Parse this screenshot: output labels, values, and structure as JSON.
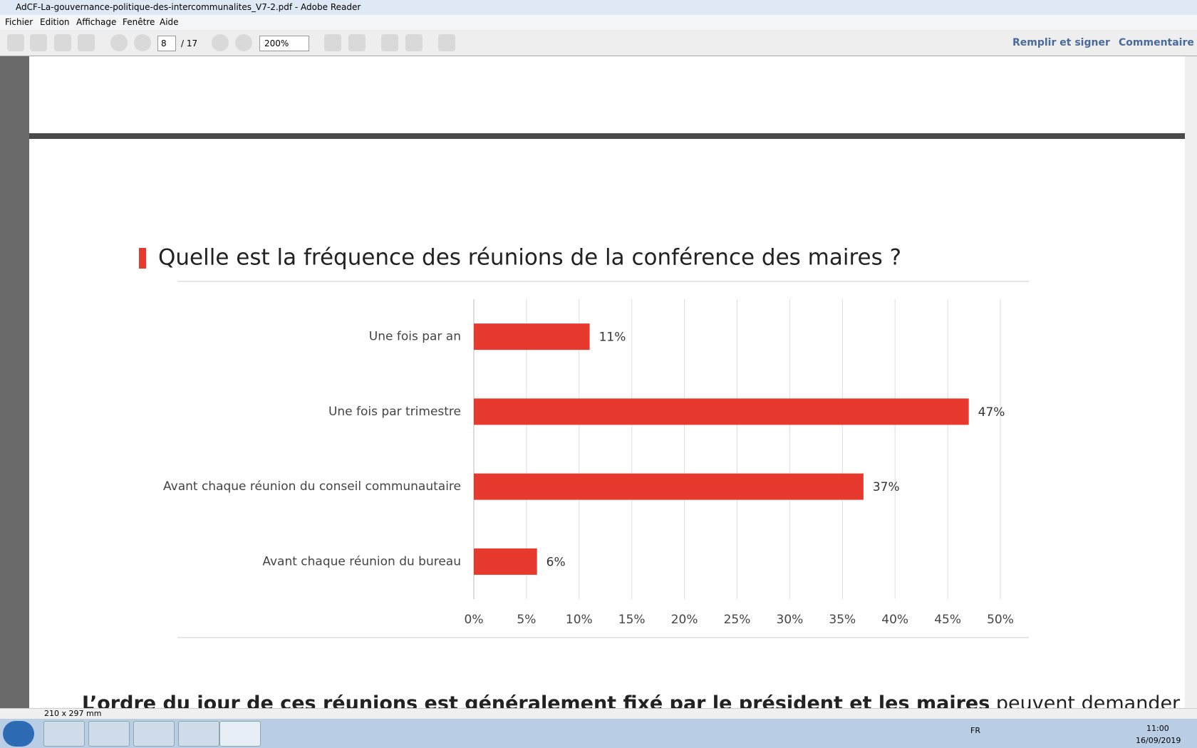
{
  "window": {
    "title": "AdCF-La-gouvernance-politique-des-intercommunalites_V7-2.pdf - Adobe Reader"
  },
  "menu": [
    "Fichier",
    "Edition",
    "Affichage",
    "Fenêtre",
    "Aide"
  ],
  "toolbar": {
    "page": "8",
    "page_total": "/ 17",
    "zoom": "200%",
    "fill_sign": "Remplir et signer",
    "comment": "Commentaire"
  },
  "chart_data": {
    "type": "barh",
    "title": "Quelle est la fréquence des réunions de la conférence des maires ?",
    "categories": [
      "Une fois par an",
      "Une fois par trimestre",
      "Avant chaque réunion du conseil communautaire",
      "Avant chaque réunion du bureau"
    ],
    "values": [
      11,
      47,
      37,
      6
    ],
    "value_labels": [
      "11%",
      "47%",
      "37%",
      "6%"
    ],
    "color": "#e8392f",
    "xlim": [
      0,
      50
    ],
    "xticks": [
      {
        "value": 0,
        "label": "0%"
      },
      {
        "value": 5,
        "label": "5%"
      },
      {
        "value": 10,
        "label": "10%"
      },
      {
        "value": 15,
        "label": "15%"
      },
      {
        "value": 20,
        "label": "20%"
      },
      {
        "value": 25,
        "label": "25%"
      },
      {
        "value": 30,
        "label": "30%"
      },
      {
        "value": 35,
        "label": "35%"
      },
      {
        "value": 40,
        "label": "40%"
      },
      {
        "value": 45,
        "label": "45%"
      },
      {
        "value": 50,
        "label": "50%"
      }
    ],
    "grid": true
  },
  "body": {
    "bold": "L’ordre du jour de ces réunions est généralement fixé par le président et les maires",
    "normal": " peuvent demander l’ajout"
  },
  "status": {
    "page_size": "210 x 297 mm"
  },
  "taskbar": {
    "lang": "FR",
    "time": "11:00",
    "date": "16/09/2019"
  }
}
